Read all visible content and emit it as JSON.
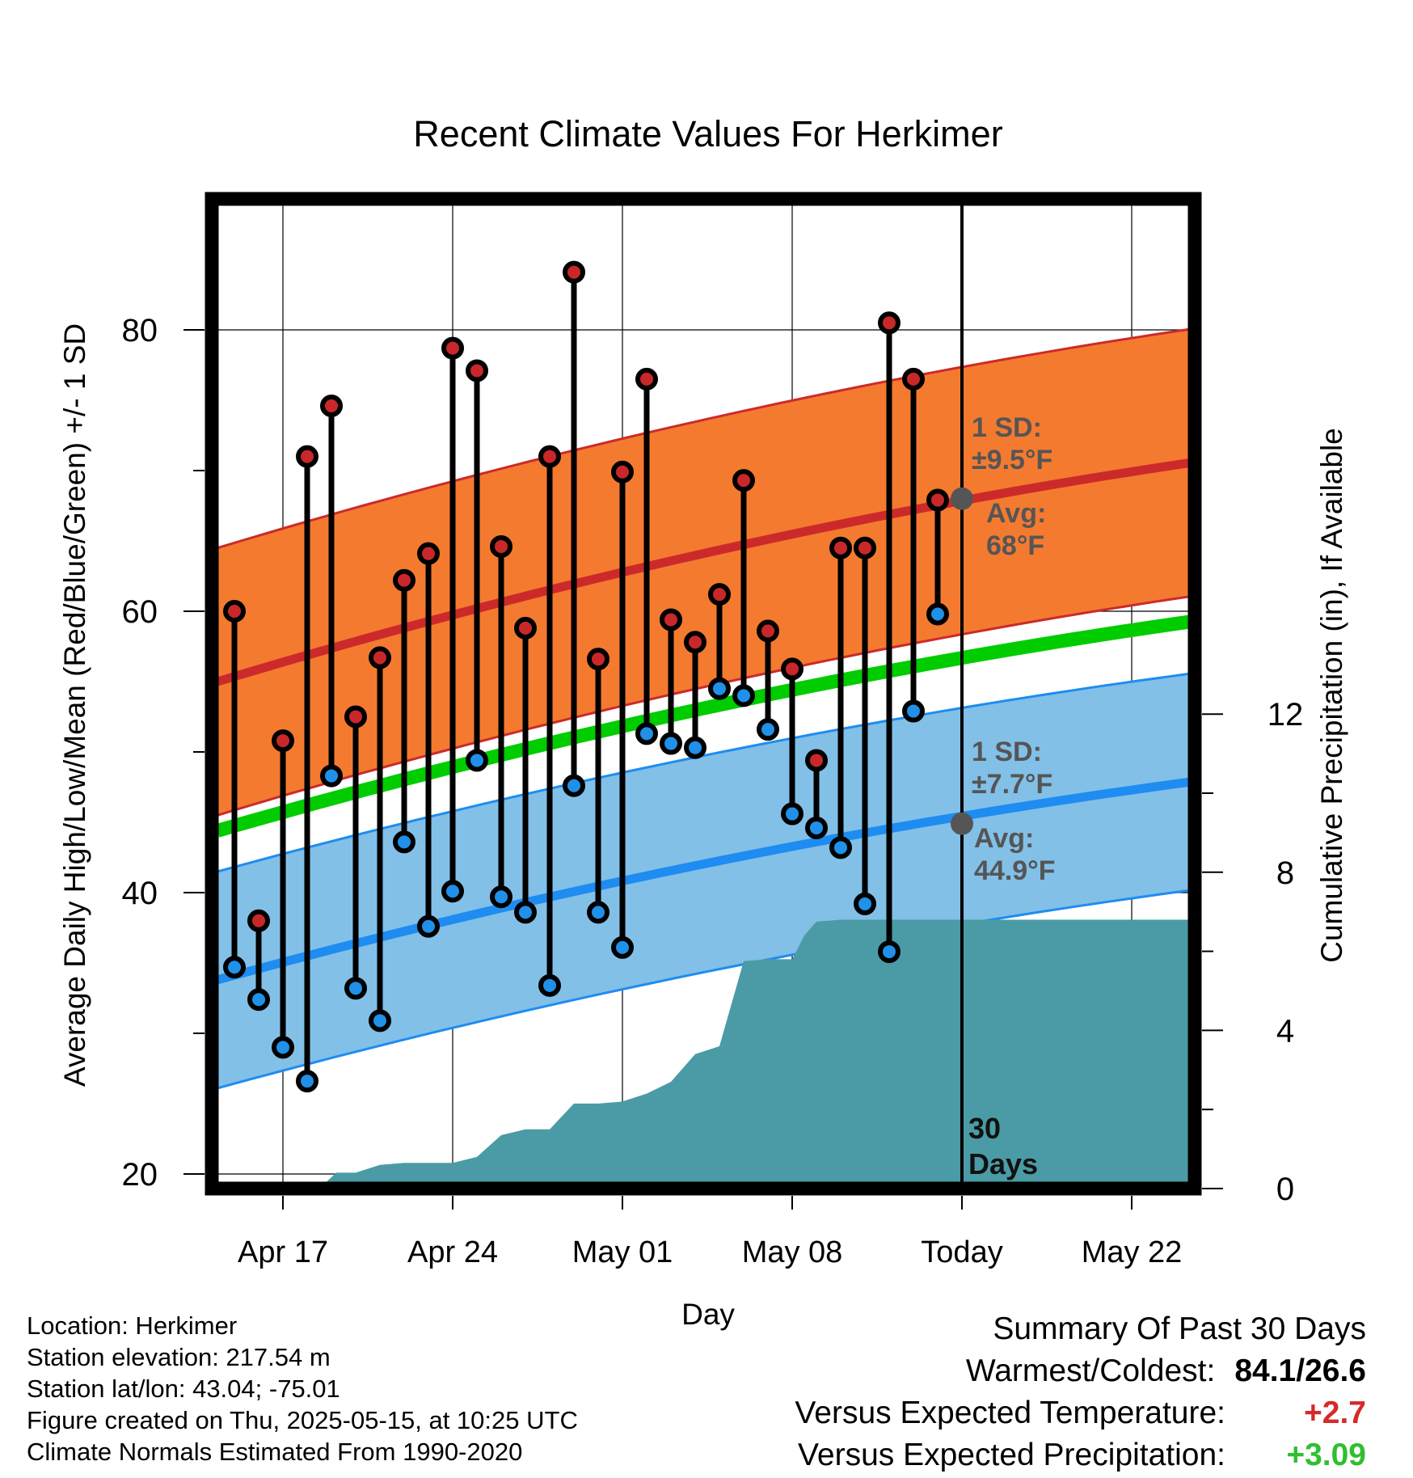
{
  "chart_data": {
    "type": "line",
    "title": "Recent Climate Values For Herkimer",
    "xlabel": "Day",
    "ylabel": "Average Daily High/Low/Mean (Red/Blue/Green) +/- 1 SD",
    "y2label": "Cumulative Precipitation (in), If Available",
    "ylim": [
      19,
      89
    ],
    "y2lim": [
      0,
      21.33
    ],
    "x_ticks": [
      {
        "day": 0,
        "label": "Apr 17"
      },
      {
        "day": 7,
        "label": "Apr 24"
      },
      {
        "day": 14,
        "label": "May 01"
      },
      {
        "day": 21,
        "label": "May 08"
      },
      {
        "day": 28,
        "label": "Today"
      },
      {
        "day": 35,
        "label": "May 22"
      }
    ],
    "y_ticks": [
      20,
      40,
      60,
      80
    ],
    "y2_ticks": [
      0,
      4,
      8,
      12
    ],
    "xlim": [
      -2.7,
      38.0
    ],
    "grid": true,
    "today_day": 28,
    "today_label_line1": "30",
    "today_label_line2": "Days",
    "normal_high": {
      "start": 55.0,
      "end": 70.7,
      "sd_label_line1": "1 SD:",
      "sd_label_line2": "±9.5°F",
      "avg_label_line1": "Avg:",
      "avg_label_line2": "68°F",
      "today_value": 68
    },
    "normal_high_sd": 9.5,
    "normal_low": {
      "start": 33.8,
      "end": 48.0,
      "sd_label_line1": "1 SD:",
      "sd_label_line2": "±7.7°F",
      "avg_label_line1": "Avg:",
      "avg_label_line2": "44.9°F",
      "today_value": 44.9
    },
    "normal_low_sd": 7.7,
    "normal_mean": {
      "start": 44.4,
      "end": 59.4
    },
    "daily": {
      "days": [
        -2,
        -1,
        0,
        1,
        2,
        3,
        4,
        5,
        6,
        7,
        8,
        9,
        10,
        11,
        12,
        13,
        14,
        15,
        16,
        17,
        18,
        19,
        20,
        21,
        22,
        23,
        24,
        25,
        26,
        27
      ],
      "highs": [
        60.0,
        38.0,
        50.8,
        71.0,
        74.6,
        52.5,
        56.7,
        62.2,
        64.1,
        78.7,
        77.1,
        64.6,
        58.8,
        71.0,
        84.1,
        56.6,
        69.9,
        76.5,
        59.4,
        57.8,
        61.2,
        69.3,
        58.6,
        55.9,
        49.4,
        64.5,
        64.5,
        80.5,
        76.5,
        67.9
      ],
      "lows": [
        34.7,
        32.4,
        29.0,
        26.6,
        48.3,
        33.2,
        30.9,
        43.6,
        37.6,
        40.1,
        49.4,
        39.7,
        38.6,
        33.4,
        47.6,
        38.6,
        36.1,
        51.3,
        50.6,
        50.3,
        54.5,
        54.0,
        51.6,
        45.6,
        44.6,
        43.2,
        39.2,
        35.8,
        52.9,
        59.8
      ]
    },
    "precip": {
      "days": [
        -2.7,
        1.5,
        2.2,
        3,
        4,
        5,
        6,
        7,
        8,
        9,
        10,
        11,
        12,
        13,
        14,
        15,
        16,
        17,
        18,
        19,
        20,
        21,
        21.5,
        22,
        23,
        28,
        38
      ],
      "values": [
        0,
        0,
        0.4,
        0.4,
        0.6,
        0.65,
        0.65,
        0.65,
        0.8,
        1.35,
        1.5,
        1.5,
        2.15,
        2.15,
        2.2,
        2.4,
        2.7,
        3.4,
        3.6,
        5.75,
        5.8,
        5.8,
        6.4,
        6.75,
        6.8,
        6.8,
        6.8
      ]
    }
  },
  "footer": {
    "location": "Location: Herkimer",
    "elevation": "Station elevation: 217.54 m",
    "latlon": "Station lat/lon: 43.04; -75.01",
    "created": "Figure created on Thu, 2025-05-15, at 10:25 UTC",
    "normals": "Climate Normals Estimated From 1990-2020"
  },
  "summary": {
    "title": "Summary Of Past 30 Days",
    "warmest_label": "Warmest/Coldest:",
    "warmest_value": "84.1/26.6",
    "temp_label": "Versus Expected Temperature:",
    "temp_value": "+2.7",
    "temp_color": "#d42a2a",
    "precip_label": "Versus Expected Precipitation:",
    "precip_value": "+3.09",
    "precip_color": "#2fbf2f"
  },
  "colors": {
    "high_band": "#f47a30",
    "high_line": "#cc2a2a",
    "low_band": "#82c0e8",
    "low_line": "#1e8cf0",
    "mean_line": "#00cc00",
    "precip_fill": "#4a9ba5",
    "high_dot": "#c8282a",
    "low_dot": "#2090e8"
  }
}
